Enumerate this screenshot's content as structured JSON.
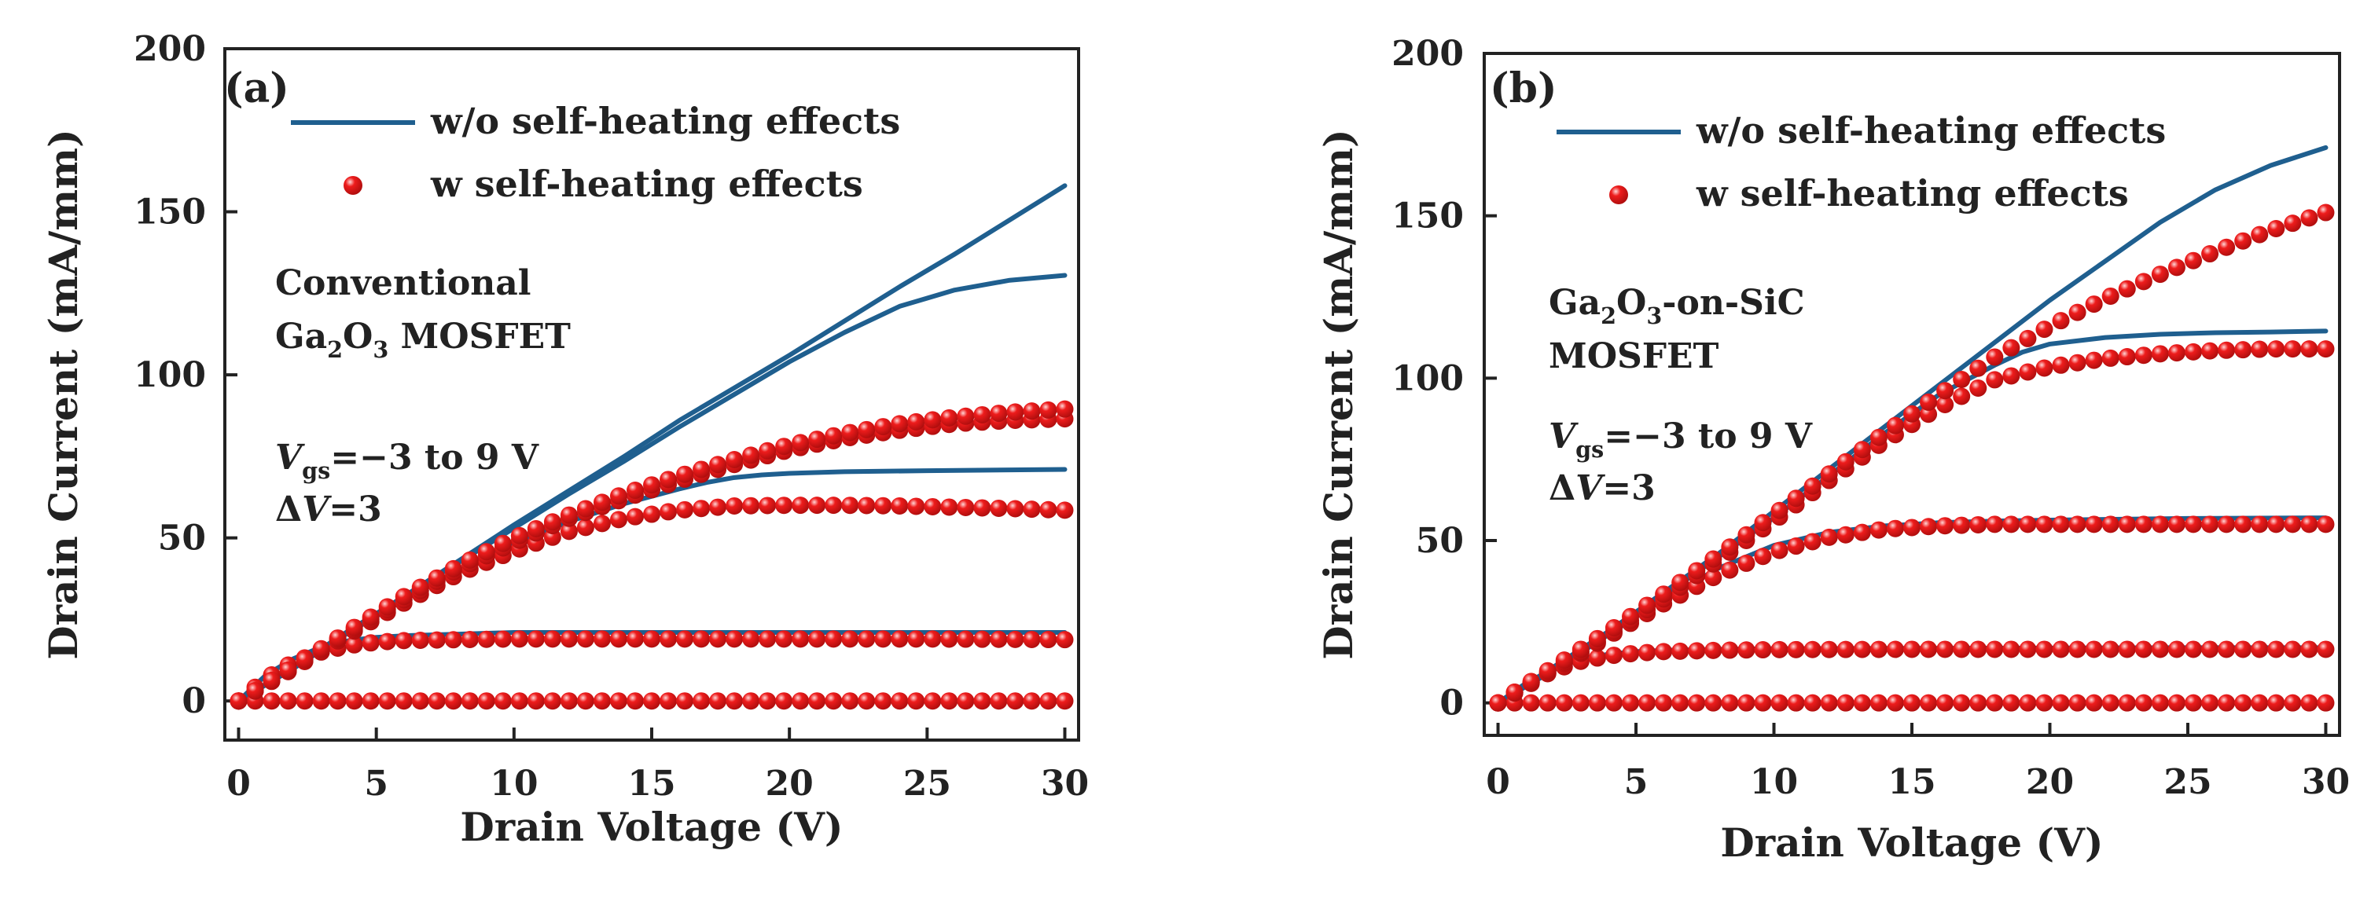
{
  "colors": {
    "line": "#1f5f8f",
    "marker": "#ee1c1c",
    "marker_highlight": "#ffd6d6",
    "axis": "#222222"
  },
  "chart_data": [
    {
      "type": "line",
      "panel_label": "(a)",
      "xlabel": "Drain Voltage (V)",
      "ylabel": "Drain Current (mA/mm)",
      "xlim": [
        -0.5,
        30.5
      ],
      "ylim": [
        -12,
        200
      ],
      "xticks": [
        "0",
        "5",
        "10",
        "15",
        "20",
        "25",
        "30"
      ],
      "yticks": [
        "0",
        "50",
        "100",
        "150",
        "200"
      ],
      "legend": [
        "w/o self-heating effects",
        "w self-heating effects"
      ],
      "annotation_lines": [
        {
          "text": "Conventional"
        },
        {
          "parts": [
            {
              "t": "Ga"
            },
            {
              "t": "2",
              "sub": true
            },
            {
              "t": "O"
            },
            {
              "t": "3",
              "sub": true
            },
            {
              "t": " MOSFET"
            }
          ]
        }
      ],
      "bias_lines": [
        {
          "parts": [
            {
              "t": "V",
              "italic": true
            },
            {
              "t": "gs",
              "sub": true
            },
            {
              "t": "=−3 to 9 V"
            }
          ]
        },
        {
          "parts": [
            {
              "t": "Δ"
            },
            {
              "t": "V",
              "italic": true
            },
            {
              "t": "=3"
            }
          ]
        }
      ],
      "series": [
        {
          "name": "w/o SHE, Vgs=-3 V",
          "style": "line",
          "x": [
            0,
            30
          ],
          "y": [
            0,
            0
          ]
        },
        {
          "name": "w/o SHE, Vgs=0 V",
          "style": "line",
          "x": [
            0,
            1,
            2,
            3,
            4,
            5,
            6,
            8,
            10,
            15,
            20,
            25,
            30
          ],
          "y": [
            0,
            8,
            13,
            16.5,
            18.5,
            19.5,
            20,
            20.5,
            21,
            21,
            21,
            21,
            21
          ]
        },
        {
          "name": "w/o SHE, Vgs=3 V",
          "style": "line",
          "x": [
            0,
            2,
            4,
            6,
            8,
            10,
            12,
            14,
            16,
            17,
            18,
            19,
            20,
            22,
            25,
            30
          ],
          "y": [
            0,
            10,
            21,
            31,
            40,
            48,
            55,
            60.5,
            65,
            67,
            68.5,
            69.3,
            69.8,
            70.3,
            70.6,
            71
          ]
        },
        {
          "name": "w/o SHE, Vgs=6 V",
          "style": "line",
          "x": [
            0,
            2,
            4,
            6,
            8,
            10,
            12,
            14,
            16,
            18,
            20,
            22,
            24,
            26,
            28,
            30
          ],
          "y": [
            0,
            10.5,
            21.5,
            32,
            42.5,
            53,
            63.5,
            73.5,
            84,
            94,
            104,
            113,
            121,
            126,
            129,
            130.5
          ]
        },
        {
          "name": "w/o SHE, Vgs=9 V",
          "style": "line",
          "x": [
            0,
            2,
            4,
            6,
            8,
            10,
            12,
            14,
            16,
            18,
            20,
            22,
            24,
            26,
            28,
            30
          ],
          "y": [
            0,
            10.5,
            21.5,
            32,
            43,
            54,
            64.5,
            75,
            86,
            96,
            106,
            116.5,
            127,
            137,
            147.5,
            158
          ]
        },
        {
          "name": "w SHE, Vgs=-3 V",
          "style": "markers",
          "x": [
            0,
            30
          ],
          "y": [
            0,
            0
          ]
        },
        {
          "name": "w SHE, Vgs=0 V",
          "style": "markers",
          "x": [
            0,
            1,
            2,
            3,
            4,
            5,
            6,
            8,
            10,
            15,
            20,
            25,
            30
          ],
          "y": [
            0,
            7,
            12,
            15,
            17,
            18,
            18.5,
            18.8,
            19,
            19,
            19,
            19,
            18.8
          ]
        },
        {
          "name": "w SHE, Vgs=3 V",
          "style": "markers",
          "x": [
            0,
            2,
            4,
            6,
            8,
            10,
            12,
            14,
            16,
            18,
            20,
            22,
            24,
            26,
            28,
            30
          ],
          "y": [
            0,
            10,
            20.5,
            30,
            39,
            46,
            52,
            56,
            58.5,
            59.8,
            60,
            60,
            59.8,
            59.4,
            59,
            58.5
          ]
        },
        {
          "name": "w SHE, Vgs=6 V",
          "style": "markers",
          "x": [
            0,
            2,
            4,
            6,
            8,
            10,
            12,
            14,
            16,
            18,
            20,
            22,
            24,
            26,
            28,
            30
          ],
          "y": [
            0,
            10.5,
            21,
            31,
            40.5,
            48.5,
            56,
            62,
            67.5,
            72.5,
            77,
            80.5,
            83,
            85,
            86,
            86.5
          ]
        },
        {
          "name": "w SHE, Vgs=9 V",
          "style": "markers",
          "x": [
            0,
            2,
            4,
            6,
            8,
            10,
            12,
            14,
            16,
            18,
            20,
            22,
            24,
            26,
            28,
            30
          ],
          "y": [
            0,
            10.5,
            21.5,
            32,
            41.5,
            50,
            57,
            63.5,
            69,
            74,
            78.5,
            82,
            85,
            87,
            88.5,
            89.5
          ]
        }
      ]
    },
    {
      "type": "line",
      "panel_label": "(b)",
      "xlabel": "Drain Voltage (V)",
      "ylabel": "Drain Current (mA/mm)",
      "xlim": [
        -0.5,
        30.5
      ],
      "ylim": [
        -10,
        200
      ],
      "xticks": [
        "0",
        "5",
        "10",
        "15",
        "20",
        "25",
        "30"
      ],
      "yticks": [
        "0",
        "50",
        "100",
        "150",
        "200"
      ],
      "legend": [
        "w/o self-heating effects",
        "w self-heating effects"
      ],
      "annotation_lines": [
        {
          "parts": [
            {
              "t": "Ga"
            },
            {
              "t": "2",
              "sub": true
            },
            {
              "t": "O"
            },
            {
              "t": "3",
              "sub": true
            },
            {
              "t": "-on-SiC"
            }
          ]
        },
        {
          "text": "MOSFET"
        }
      ],
      "bias_lines": [
        {
          "parts": [
            {
              "t": "V",
              "italic": true
            },
            {
              "t": "gs",
              "sub": true
            },
            {
              "t": "=−3 to 9 V"
            }
          ]
        },
        {
          "parts": [
            {
              "t": "Δ"
            },
            {
              "t": "V",
              "italic": true
            },
            {
              "t": "=3"
            }
          ]
        }
      ],
      "series": [
        {
          "name": "w/o SHE, Vgs=-3 V",
          "style": "line",
          "x": [
            0,
            30
          ],
          "y": [
            0,
            0
          ]
        },
        {
          "name": "w/o SHE, Vgs=0 V",
          "style": "line",
          "x": [
            0,
            1,
            2,
            3,
            4,
            5,
            6,
            8,
            10,
            15,
            20,
            25,
            30
          ],
          "y": [
            0,
            6,
            10.5,
            13.5,
            15,
            15.8,
            16.2,
            16.5,
            16.7,
            16.8,
            16.9,
            17,
            17
          ]
        },
        {
          "name": "w/o SHE, Vgs=3 V",
          "style": "line",
          "x": [
            0,
            2,
            4,
            6,
            8,
            10,
            12,
            14,
            16,
            18,
            20,
            22,
            25,
            30
          ],
          "y": [
            0,
            10,
            21,
            32,
            41.5,
            48.5,
            52.5,
            54.5,
            55.5,
            56,
            56.3,
            56.5,
            56.8,
            57
          ]
        },
        {
          "name": "w/o SHE, Vgs=6 V",
          "style": "line",
          "x": [
            0,
            2,
            4,
            6,
            8,
            10,
            12,
            14,
            16,
            18,
            19,
            20,
            22,
            24,
            26,
            28,
            30
          ],
          "y": [
            0,
            10.5,
            21.5,
            33,
            45,
            57,
            70,
            83,
            95,
            104,
            108,
            110.5,
            112.5,
            113.5,
            114,
            114.2,
            114.5
          ]
        },
        {
          "name": "w/o SHE, Vgs=9 V",
          "style": "line",
          "x": [
            0,
            2,
            4,
            6,
            8,
            10,
            12,
            14,
            16,
            18,
            20,
            22,
            24,
            26,
            28,
            30
          ],
          "y": [
            0,
            11,
            22,
            34,
            46,
            59,
            72,
            85,
            98,
            111,
            124,
            136,
            148,
            158,
            165.5,
            171
          ]
        },
        {
          "name": "w SHE, Vgs=-3 V",
          "style": "markers",
          "x": [
            0,
            30
          ],
          "y": [
            0,
            0
          ]
        },
        {
          "name": "w SHE, Vgs=0 V",
          "style": "markers",
          "x": [
            0,
            1,
            2,
            3,
            4,
            5,
            6,
            8,
            10,
            15,
            20,
            25,
            30
          ],
          "y": [
            0,
            5.5,
            10,
            12.8,
            14.5,
            15.3,
            15.8,
            16.2,
            16.4,
            16.5,
            16.5,
            16.5,
            16.5
          ]
        },
        {
          "name": "w SHE, Vgs=3 V",
          "style": "markers",
          "x": [
            0,
            2,
            4,
            6,
            8,
            10,
            12,
            14,
            16,
            18,
            20,
            22,
            25,
            30
          ],
          "y": [
            0,
            10,
            20.5,
            30.5,
            39.5,
            46.5,
            51,
            53.5,
            54.5,
            55,
            55,
            55,
            55,
            55
          ]
        },
        {
          "name": "w SHE, Vgs=6 V",
          "style": "markers",
          "x": [
            0,
            2,
            4,
            6,
            8,
            10,
            12,
            14,
            16,
            18,
            20,
            22,
            24,
            26,
            28,
            30
          ],
          "y": [
            0,
            10.5,
            21,
            32,
            44,
            56,
            68.5,
            80.5,
            91,
            99.5,
            103.5,
            106,
            107.5,
            108.5,
            109,
            109
          ]
        },
        {
          "name": "w SHE, Vgs=9 V",
          "style": "markers",
          "x": [
            0,
            2,
            4,
            6,
            8,
            10,
            12,
            14,
            16,
            18,
            20,
            22,
            24,
            26,
            28,
            30
          ],
          "y": [
            0,
            11,
            22,
            33.5,
            45.5,
            58,
            70.5,
            83,
            95,
            106.5,
            116,
            124.5,
            132,
            139,
            145.5,
            151
          ]
        }
      ]
    }
  ]
}
